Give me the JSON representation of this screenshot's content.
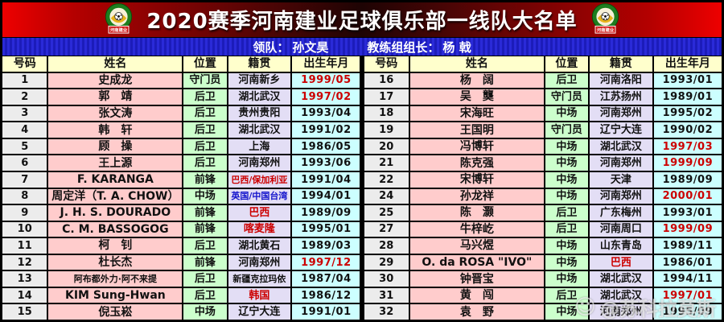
{
  "header": {
    "title": "2020赛季河南建业足球俱乐部一线队大名单",
    "logo_text": "河南建业"
  },
  "staff_bar": {
    "leader_label": "领队：",
    "leader_name": "孙文昊",
    "coach_label": "教练组组长：",
    "coach_name": "杨  戟"
  },
  "table": {
    "columns": [
      "号码",
      "姓名",
      "位置",
      "籍贯",
      "出生年月"
    ],
    "left_rows": [
      {
        "no": "1",
        "name": "史成龙",
        "pos": "守门员",
        "origin": "河南新乡",
        "born": "1999/05",
        "born_red": true
      },
      {
        "no": "2",
        "name": "郭　靖",
        "pos": "后卫",
        "origin": "湖北武汉",
        "born": "1997/02",
        "born_red": true
      },
      {
        "no": "3",
        "name": "张文涛",
        "pos": "后卫",
        "origin": "贵州贵阳",
        "born": "1993/04",
        "born_red": false
      },
      {
        "no": "4",
        "name": "韩　轩",
        "pos": "后卫",
        "origin": "湖北武汉",
        "born": "1991/02",
        "born_red": false
      },
      {
        "no": "5",
        "name": "顾　操",
        "pos": "后卫",
        "origin": "上海",
        "born": "1986/05",
        "born_red": false
      },
      {
        "no": "6",
        "name": "王上源",
        "pos": "后卫",
        "origin": "河南郑州",
        "born": "1993/06",
        "born_red": false
      },
      {
        "no": "7",
        "name": "F. KARANGA",
        "pos": "前锋",
        "origin": "巴西/保加利亚",
        "origin_color": "red",
        "born": "1991/04",
        "born_red": false
      },
      {
        "no": "8",
        "name": "周定洋（T. A. CHOW）",
        "pos": "中场",
        "origin": "英国/中国台湾",
        "origin_color": "blue",
        "born": "1994/01",
        "born_red": false
      },
      {
        "no": "9",
        "name": "J. H. S. DOURADO",
        "pos": "前锋",
        "origin": "巴西",
        "origin_color": "red",
        "born": "1989/09",
        "born_red": false
      },
      {
        "no": "10",
        "name": "C. M. BASSOGOG",
        "pos": "前锋",
        "origin": "喀麦隆",
        "origin_color": "red",
        "born": "1995/01",
        "born_red": false
      },
      {
        "no": "11",
        "name": "柯　钊",
        "pos": "后卫",
        "origin": "湖北黄石",
        "born": "1989/03",
        "born_red": false
      },
      {
        "no": "12",
        "name": "杜长杰",
        "pos": "前锋",
        "origin": "河南郑州",
        "born": "1997/12",
        "born_red": true
      },
      {
        "no": "13",
        "name": "阿布都外力·阿不来提",
        "pos": "后卫",
        "origin": "新疆克拉玛依",
        "born": "1987/04",
        "born_red": false
      },
      {
        "no": "14",
        "name": "KIM Sung-Hwan",
        "pos": "后卫",
        "origin": "韩国",
        "origin_color": "red",
        "born": "1986/12",
        "born_red": false
      },
      {
        "no": "15",
        "name": "倪玉崧",
        "pos": "中场",
        "origin": "辽宁大连",
        "born": "1991/01",
        "born_red": false
      }
    ],
    "right_rows": [
      {
        "no": "16",
        "name": "杨　阔",
        "pos": "后卫",
        "origin": "河南洛阳",
        "born": "1993/01",
        "born_red": false
      },
      {
        "no": "17",
        "name": "吴　龑",
        "pos": "守门员",
        "origin": "江苏扬州",
        "born": "1989/01",
        "born_red": false
      },
      {
        "no": "18",
        "name": "宋海旺",
        "pos": "中场",
        "origin": "河南郑州",
        "born": "1995/02",
        "born_red": false
      },
      {
        "no": "19",
        "name": "王国明",
        "pos": "守门员",
        "origin": "辽宁大连",
        "born": "1990/02",
        "born_red": false
      },
      {
        "no": "20",
        "name": "冯博轩",
        "pos": "中场",
        "origin": "湖北武汉",
        "born": "1997/03",
        "born_red": true
      },
      {
        "no": "21",
        "name": "陈克强",
        "pos": "中场",
        "origin": "河南郑州",
        "born": "1999/09",
        "born_red": true
      },
      {
        "no": "22",
        "name": "宋博轩",
        "pos": "中场",
        "origin": "天津",
        "born": "1989/09",
        "born_red": false
      },
      {
        "no": "24",
        "name": "孙龙祥",
        "pos": "中场",
        "origin": "河南郑州",
        "born": "2000/01",
        "born_red": true
      },
      {
        "no": "25",
        "name": "陈　灏",
        "pos": "后卫",
        "origin": "广东梅州",
        "born": "1993/01",
        "born_red": false
      },
      {
        "no": "27",
        "name": "牛梓屹",
        "pos": "后卫",
        "origin": "河南周口",
        "born": "1999/09",
        "born_red": true
      },
      {
        "no": "28",
        "name": "马兴煜",
        "pos": "中场",
        "origin": "山东青岛",
        "born": "1989/11",
        "born_red": false
      },
      {
        "no": "29",
        "name": "O. da ROSA \"IVO\"",
        "pos": "中场",
        "origin": "巴西",
        "origin_color": "red",
        "born": "1986/01",
        "born_red": false
      },
      {
        "no": "30",
        "name": "钟晋宝",
        "pos": "中场",
        "origin": "湖北武汉",
        "born": "1994/11",
        "born_red": false
      },
      {
        "no": "31",
        "name": "黄　闯",
        "pos": "后卫",
        "origin": "湖北武汉",
        "born": "1997/01",
        "born_red": true
      },
      {
        "no": "32",
        "name": "袁　野",
        "pos": "中场",
        "origin": "河南郑州",
        "born": "1995/09",
        "born_red": false
      }
    ]
  },
  "watermark": {
    "icon": "☺",
    "text": "@苏科拉莫斯"
  },
  "colors": {
    "accent_red": "#cc0000",
    "accent_blue": "#1212cc",
    "header_red": "#ee0000",
    "bar_blue": "#2222cc",
    "col_header_bg": "#ffffcc",
    "num_bg": "#ececec",
    "name_bg": "#ffcccc",
    "pos_bg": "#ccffcc",
    "origin_bg": "#e3def5",
    "born_bg": "#ccffff"
  }
}
